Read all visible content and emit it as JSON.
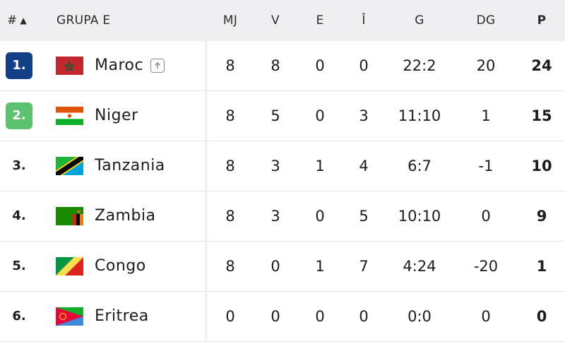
{
  "header": {
    "rank": "#",
    "sort_indicator": "▲",
    "group": "GRUPA E",
    "mj": "MJ",
    "v": "V",
    "e": "E",
    "i": "Î",
    "g": "G",
    "dg": "DG",
    "p": "P"
  },
  "colors": {
    "rank1_badge": "#123f86",
    "rank2_badge": "#5cc26f",
    "header_bg": "#efeff1"
  },
  "rows": [
    {
      "rank": "1.",
      "team": "Maroc",
      "flag": "morocco-flag",
      "mj": "8",
      "v": "8",
      "e": "0",
      "i": "0",
      "g": "22:2",
      "dg": "20",
      "p": "24"
    },
    {
      "rank": "2.",
      "team": "Niger",
      "flag": "niger-flag",
      "mj": "8",
      "v": "5",
      "e": "0",
      "i": "3",
      "g": "11:10",
      "dg": "1",
      "p": "15"
    },
    {
      "rank": "3.",
      "team": "Tanzania",
      "flag": "tanzania-flag",
      "mj": "8",
      "v": "3",
      "e": "1",
      "i": "4",
      "g": "6:7",
      "dg": "-1",
      "p": "10"
    },
    {
      "rank": "4.",
      "team": "Zambia",
      "flag": "zambia-flag",
      "mj": "8",
      "v": "3",
      "e": "0",
      "i": "5",
      "g": "10:10",
      "dg": "0",
      "p": "9"
    },
    {
      "rank": "5.",
      "team": "Congo",
      "flag": "congo-flag",
      "mj": "8",
      "v": "0",
      "e": "1",
      "i": "7",
      "g": "4:24",
      "dg": "-20",
      "p": "1"
    },
    {
      "rank": "6.",
      "team": "Eritrea",
      "flag": "eritrea-flag",
      "mj": "0",
      "v": "0",
      "e": "0",
      "i": "0",
      "g": "0:0",
      "dg": "0",
      "p": "0"
    }
  ]
}
